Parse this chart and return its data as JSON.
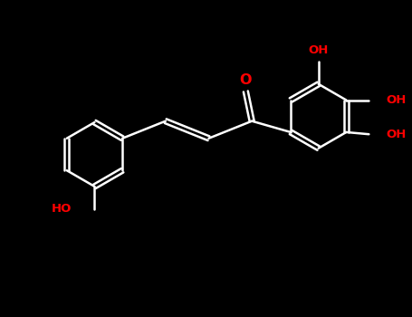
{
  "bg": "#000000",
  "wc": "#ffffff",
  "oc": "#ff0000",
  "lw": 1.8,
  "figsize": [
    4.55,
    3.5
  ],
  "dpi": 100,
  "xlim": [
    -0.5,
    9.5
  ],
  "ylim": [
    -0.5,
    6.5
  ],
  "ring_r": 0.78,
  "dbl_sep": 0.055,
  "label_fs": 9.5,
  "label_bold": true
}
